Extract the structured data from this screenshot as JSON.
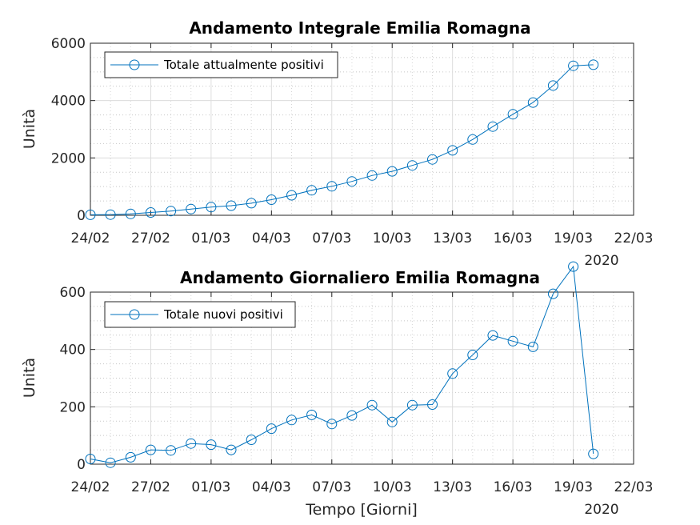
{
  "chart_data": [
    {
      "type": "line",
      "title": "Andamento Integrale Emilia Romagna",
      "ylabel": "Unità",
      "xlabel": "",
      "year_label": "2020",
      "ylim": [
        0,
        6000
      ],
      "yticks": [
        0,
        2000,
        4000,
        6000
      ],
      "xlim": [
        "2020-02-24",
        "2020-03-22"
      ],
      "xticks": [
        "2020-02-24",
        "2020-02-27",
        "2020-03-01",
        "2020-03-04",
        "2020-03-07",
        "2020-03-10",
        "2020-03-13",
        "2020-03-16",
        "2020-03-19",
        "2020-03-22"
      ],
      "xtick_labels": [
        "24/02",
        "27/02",
        "01/03",
        "04/03",
        "07/03",
        "10/03",
        "13/03",
        "16/03",
        "19/03",
        "22/03"
      ],
      "grid": true,
      "minor_grid": true,
      "legend_position": "top-left",
      "series": [
        {
          "name": "Totale attualmente positivi",
          "color": "#0072BD",
          "marker": "circle",
          "x": [
            "2020-02-24",
            "2020-02-25",
            "2020-02-26",
            "2020-02-27",
            "2020-02-28",
            "2020-02-29",
            "2020-03-01",
            "2020-03-02",
            "2020-03-03",
            "2020-03-04",
            "2020-03-05",
            "2020-03-06",
            "2020-03-07",
            "2020-03-08",
            "2020-03-09",
            "2020-03-10",
            "2020-03-11",
            "2020-03-12",
            "2020-03-13",
            "2020-03-14",
            "2020-03-15",
            "2020-03-16",
            "2020-03-17",
            "2020-03-18",
            "2020-03-19",
            "2020-03-20"
          ],
          "values": [
            18,
            23,
            47,
            97,
            145,
            217,
            285,
            335,
            420,
            544,
            698,
            870,
            1010,
            1180,
            1386,
            1533,
            1739,
            1947,
            2263,
            2644,
            3093,
            3522,
            3931,
            4525,
            5214,
            5250
          ]
        }
      ]
    },
    {
      "type": "line",
      "title": "Andamento Giornaliero Emilia Romagna",
      "ylabel": "Unità",
      "xlabel": "Tempo [Giorni]",
      "year_label": "2020",
      "ylim": [
        0,
        600
      ],
      "yticks": [
        0,
        200,
        400,
        600
      ],
      "xlim": [
        "2020-02-24",
        "2020-03-22"
      ],
      "xticks": [
        "2020-02-24",
        "2020-02-27",
        "2020-03-01",
        "2020-03-04",
        "2020-03-07",
        "2020-03-10",
        "2020-03-13",
        "2020-03-16",
        "2020-03-19",
        "2020-03-22"
      ],
      "xtick_labels": [
        "24/02",
        "27/02",
        "01/03",
        "04/03",
        "07/03",
        "10/03",
        "13/03",
        "16/03",
        "19/03",
        "22/03"
      ],
      "grid": true,
      "minor_grid": true,
      "legend_position": "top-left",
      "series": [
        {
          "name": "Totale nuovi positivi",
          "color": "#0072BD",
          "marker": "circle",
          "x": [
            "2020-02-24",
            "2020-02-25",
            "2020-02-26",
            "2020-02-27",
            "2020-02-28",
            "2020-02-29",
            "2020-03-01",
            "2020-03-02",
            "2020-03-03",
            "2020-03-04",
            "2020-03-05",
            "2020-03-06",
            "2020-03-07",
            "2020-03-08",
            "2020-03-09",
            "2020-03-10",
            "2020-03-11",
            "2020-03-12",
            "2020-03-13",
            "2020-03-14",
            "2020-03-15",
            "2020-03-16",
            "2020-03-17",
            "2020-03-18",
            "2020-03-19",
            "2020-03-20"
          ],
          "values": [
            18,
            5,
            24,
            50,
            48,
            72,
            68,
            50,
            85,
            124,
            154,
            172,
            140,
            170,
            206,
            147,
            206,
            208,
            316,
            381,
            449,
            429,
            409,
            594,
            689,
            36
          ]
        }
      ]
    }
  ]
}
